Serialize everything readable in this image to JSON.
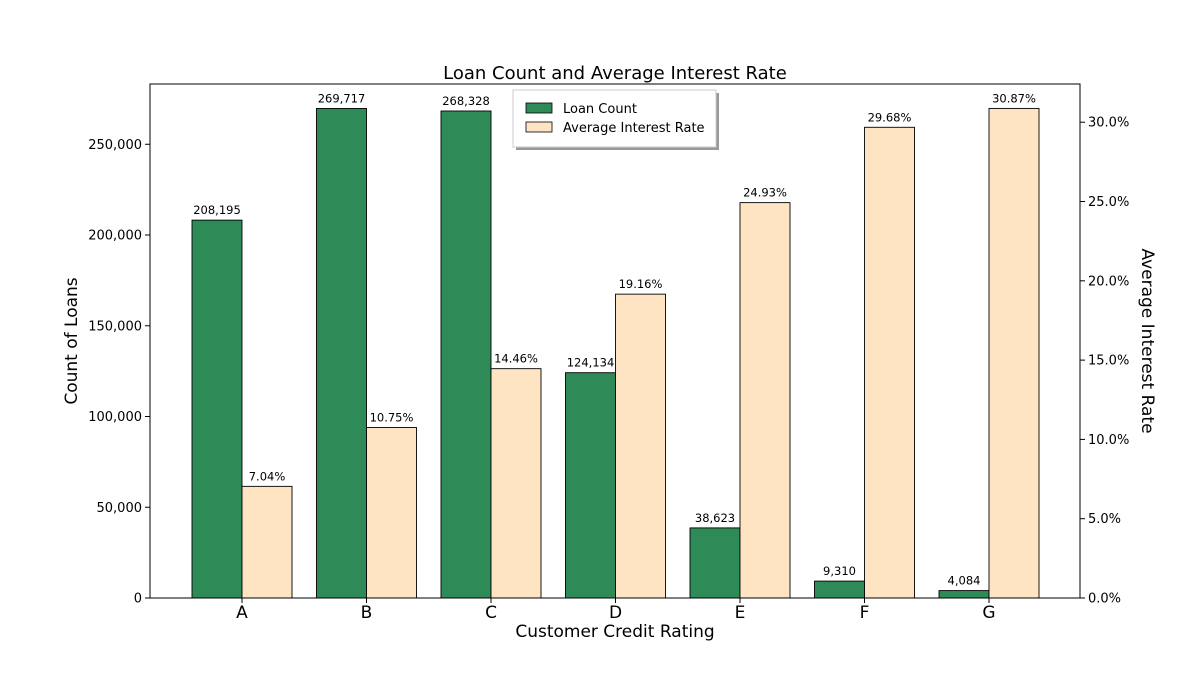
{
  "chart_data": {
    "type": "bar",
    "title": "Loan Count and Average Interest Rate",
    "xlabel": "Customer Credit Rating",
    "ylabel": "Count of Loans",
    "y2label": "Average Interest Rate",
    "categories": [
      "A",
      "B",
      "C",
      "D",
      "E",
      "F",
      "G"
    ],
    "series": [
      {
        "name": "Loan Count",
        "axis": "left",
        "color": "#2e8b57",
        "values": [
          208195,
          269717,
          268328,
          124134,
          38623,
          9310,
          4084
        ],
        "labels": [
          "208,195",
          "269,717",
          "268,328",
          "124,134",
          "38,623",
          "9,310",
          "4,084"
        ]
      },
      {
        "name": "Average Interest Rate",
        "axis": "right",
        "color": "#ffe4c4",
        "values": [
          7.04,
          10.75,
          14.46,
          19.16,
          24.93,
          29.68,
          30.87
        ],
        "labels": [
          "7.04%",
          "10.75%",
          "14.46%",
          "19.16%",
          "24.93%",
          "29.68%",
          "30.87%"
        ]
      }
    ],
    "ylim": [
      0,
      283200
    ],
    "y2lim": [
      0,
      32.41
    ],
    "yticks": [
      0,
      50000,
      100000,
      150000,
      200000,
      250000
    ],
    "yticklabels": [
      "0",
      "50,000",
      "100,000",
      "150,000",
      "200,000",
      "250,000"
    ],
    "y2ticks": [
      0,
      5,
      10,
      15,
      20,
      25,
      30
    ],
    "y2ticklabels": [
      "0.0%",
      "5.0%",
      "10.0%",
      "15.0%",
      "20.0%",
      "25.0%",
      "30.0%"
    ],
    "grid": false,
    "legend": "top-center"
  }
}
